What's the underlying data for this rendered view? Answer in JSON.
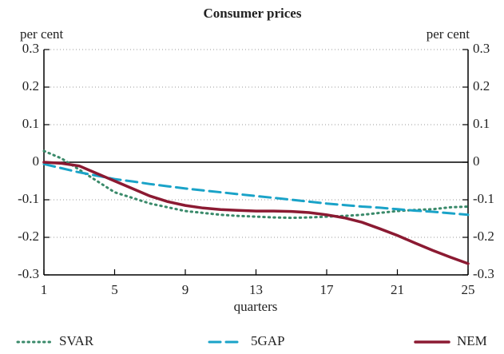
{
  "chart_data": {
    "type": "line",
    "title": "Consumer prices",
    "y_label": "per cent",
    "y2_label": "per cent",
    "x_label": "quarters",
    "x": [
      1,
      2,
      3,
      4,
      5,
      6,
      7,
      8,
      9,
      10,
      11,
      12,
      13,
      14,
      15,
      16,
      17,
      18,
      19,
      20,
      21,
      22,
      23,
      24,
      25
    ],
    "xlim": [
      1,
      25
    ],
    "xticks": [
      1,
      5,
      9,
      13,
      17,
      21,
      25
    ],
    "ylim": [
      -0.3,
      0.3
    ],
    "yticks": [
      -0.3,
      -0.2,
      -0.1,
      0,
      0.1,
      0.2,
      0.3
    ],
    "y2lim": [
      -0.3,
      0.3
    ],
    "y2ticks": [
      -0.3,
      -0.2,
      -0.1,
      0,
      0.1,
      0.2,
      0.3
    ],
    "grid": true,
    "series": [
      {
        "name": "SVAR",
        "color": "#3a8a6a",
        "style": "dotted",
        "values": [
          0.03,
          0.01,
          -0.02,
          -0.05,
          -0.08,
          -0.095,
          -0.11,
          -0.12,
          -0.13,
          -0.135,
          -0.14,
          -0.143,
          -0.145,
          -0.147,
          -0.148,
          -0.147,
          -0.145,
          -0.143,
          -0.14,
          -0.135,
          -0.13,
          -0.127,
          -0.125,
          -0.12,
          -0.118
        ]
      },
      {
        "name": "5GAP",
        "color": "#1aa3c8",
        "style": "dashed",
        "values": [
          -0.005,
          -0.016,
          -0.027,
          -0.036,
          -0.045,
          -0.051,
          -0.058,
          -0.064,
          -0.07,
          -0.075,
          -0.08,
          -0.085,
          -0.09,
          -0.095,
          -0.1,
          -0.105,
          -0.11,
          -0.114,
          -0.118,
          -0.121,
          -0.125,
          -0.129,
          -0.132,
          -0.136,
          -0.14
        ]
      },
      {
        "name": "NEM",
        "color": "#8b1a32",
        "style": "solid",
        "values": [
          0,
          -0.003,
          -0.01,
          -0.03,
          -0.05,
          -0.07,
          -0.09,
          -0.105,
          -0.115,
          -0.122,
          -0.126,
          -0.128,
          -0.13,
          -0.13,
          -0.131,
          -0.134,
          -0.14,
          -0.148,
          -0.16,
          -0.177,
          -0.195,
          -0.215,
          -0.235,
          -0.253,
          -0.27
        ]
      }
    ]
  }
}
